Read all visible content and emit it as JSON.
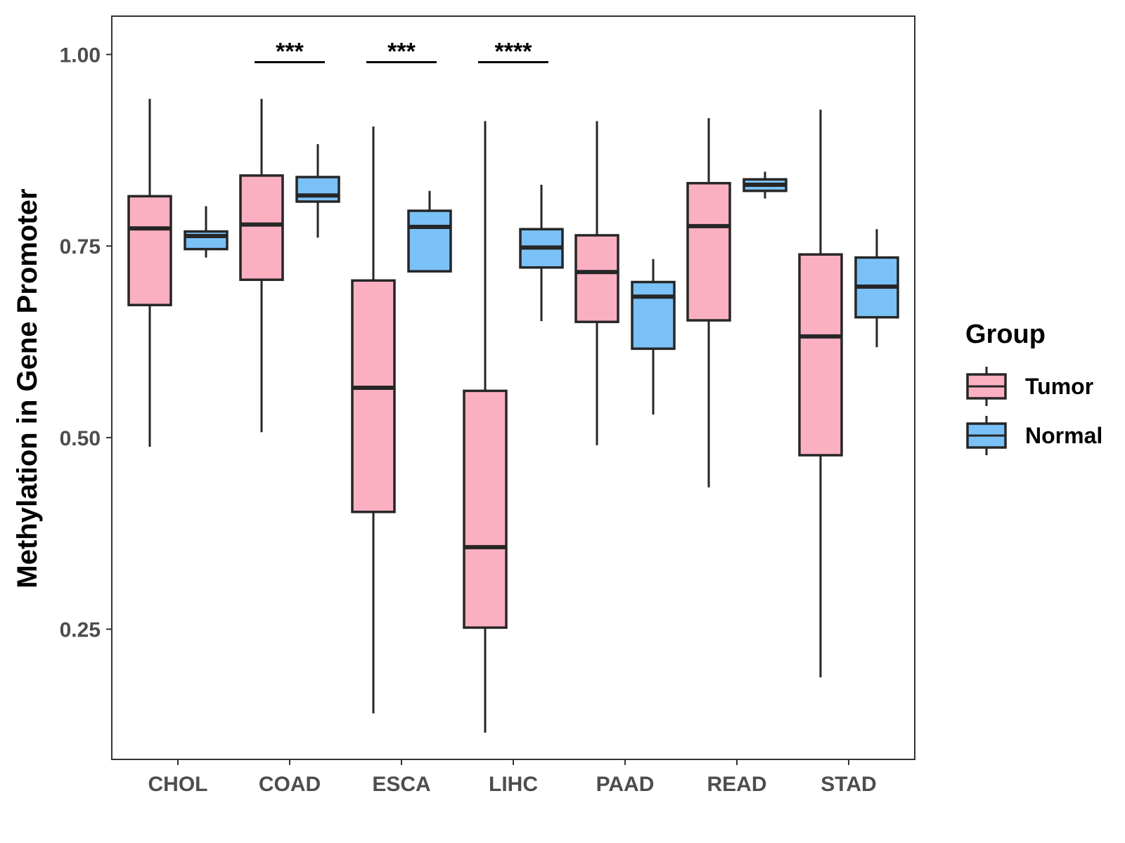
{
  "chart_data": {
    "type": "boxplot",
    "title": "",
    "xlabel": "",
    "ylabel": "Methylation in Gene Promoter",
    "ylim": [
      0.08,
      1.05
    ],
    "yticks": [
      0.25,
      0.5,
      0.75,
      1.0
    ],
    "ytick_labels": [
      "0.25",
      "0.50",
      "0.75",
      "1.00"
    ],
    "grid": false,
    "categories": [
      "CHOL",
      "COAD",
      "ESCA",
      "LIHC",
      "PAAD",
      "READ",
      "STAD"
    ],
    "series": [
      {
        "name": "Tumor",
        "color": "#FBB0C2",
        "boxes": [
          {
            "whisker_low": 0.488,
            "q1": 0.673,
            "median": 0.773,
            "q3": 0.815,
            "whisker_high": 0.942
          },
          {
            "whisker_low": 0.507,
            "q1": 0.706,
            "median": 0.778,
            "q3": 0.842,
            "whisker_high": 0.942
          },
          {
            "whisker_low": 0.14,
            "q1": 0.403,
            "median": 0.565,
            "q3": 0.705,
            "whisker_high": 0.906
          },
          {
            "whisker_low": 0.115,
            "q1": 0.252,
            "median": 0.357,
            "q3": 0.561,
            "whisker_high": 0.913
          },
          {
            "whisker_low": 0.49,
            "q1": 0.651,
            "median": 0.716,
            "q3": 0.764,
            "whisker_high": 0.913
          },
          {
            "whisker_low": 0.435,
            "q1": 0.653,
            "median": 0.776,
            "q3": 0.832,
            "whisker_high": 0.917
          },
          {
            "whisker_low": 0.187,
            "q1": 0.477,
            "median": 0.632,
            "q3": 0.739,
            "whisker_high": 0.928
          }
        ]
      },
      {
        "name": "Normal",
        "color": "#7AC1F7",
        "boxes": [
          {
            "whisker_low": 0.735,
            "q1": 0.746,
            "median": 0.763,
            "q3": 0.769,
            "whisker_high": 0.802
          },
          {
            "whisker_low": 0.761,
            "q1": 0.808,
            "median": 0.816,
            "q3": 0.84,
            "whisker_high": 0.883
          },
          {
            "whisker_low": 0.717,
            "q1": 0.717,
            "median": 0.775,
            "q3": 0.796,
            "whisker_high": 0.822
          },
          {
            "whisker_low": 0.652,
            "q1": 0.722,
            "median": 0.748,
            "q3": 0.772,
            "whisker_high": 0.83
          },
          {
            "whisker_low": 0.53,
            "q1": 0.616,
            "median": 0.684,
            "q3": 0.703,
            "whisker_high": 0.733
          },
          {
            "whisker_low": 0.812,
            "q1": 0.822,
            "median": 0.83,
            "q3": 0.837,
            "whisker_high": 0.847
          },
          {
            "whisker_low": 0.618,
            "q1": 0.657,
            "median": 0.697,
            "q3": 0.735,
            "whisker_high": 0.772
          }
        ]
      }
    ],
    "significance": [
      {
        "category": "COAD",
        "label": "***",
        "y": 0.99
      },
      {
        "category": "ESCA",
        "label": "***",
        "y": 0.99
      },
      {
        "category": "LIHC",
        "label": "****",
        "y": 0.99
      }
    ],
    "legend": {
      "title": "Group",
      "position": "right",
      "entries": [
        "Tumor",
        "Normal"
      ]
    }
  }
}
